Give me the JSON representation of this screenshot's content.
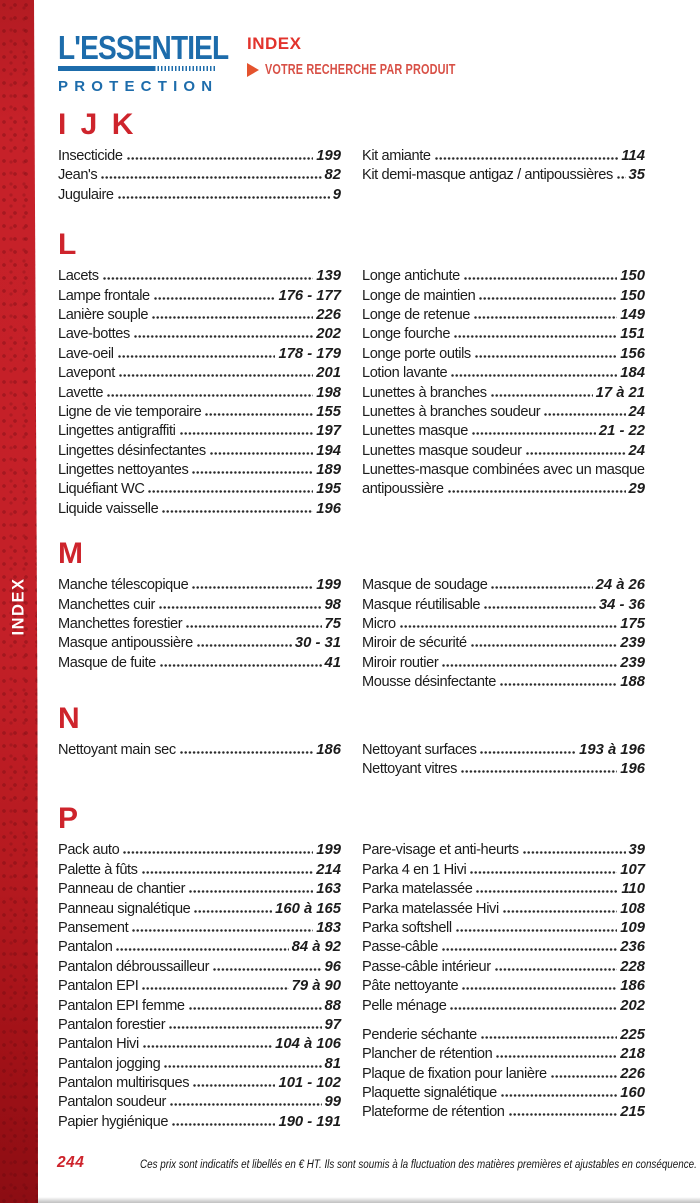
{
  "logo": {
    "line1": "L'ESSENTIEL",
    "line2": "PROTECTION"
  },
  "header": {
    "title": "INDEX",
    "subtitle": "VOTRE RECHERCHE PAR PRODUIT"
  },
  "side_tab": "INDEX",
  "colors": {
    "accent_red": "#ce242c",
    "strip_red": "#c1202a",
    "title_red": "#e2332c",
    "subtitle_red": "#d85046",
    "logo_blue": "#1d6cab",
    "text": "#1c1c1c"
  },
  "footer": {
    "page_number": "244",
    "note": "Ces prix sont indicatifs et libellés en € HT. Ils sont soumis à la fluctuation des matières premières et ajustables en conséquence."
  },
  "sections": [
    {
      "letter": "I J K",
      "left": [
        {
          "label": "Insecticide",
          "page": "199"
        },
        {
          "label": "Jean's",
          "page": "82"
        },
        {
          "label": "Jugulaire",
          "page": "9"
        }
      ],
      "right": [
        {
          "label": "Kit amiante",
          "page": "114"
        },
        {
          "label": "Kit demi-masque antigaz / antipoussières",
          "page": "35"
        }
      ]
    },
    {
      "letter": "L",
      "left": [
        {
          "label": "Lacets",
          "page": "139"
        },
        {
          "label": "Lampe frontale",
          "page": "176 - 177"
        },
        {
          "label": "Lanière souple",
          "page": "226"
        },
        {
          "label": "Lave-bottes",
          "page": "202"
        },
        {
          "label": "Lave-oeil",
          "page": "178 - 179"
        },
        {
          "label": "Lavepont",
          "page": "201"
        },
        {
          "label": "Lavette",
          "page": "198"
        },
        {
          "label": "Ligne de vie temporaire",
          "page": "155"
        },
        {
          "label": "Lingettes antigraffiti",
          "page": "197"
        },
        {
          "label": "Lingettes désinfectantes",
          "page": "194"
        },
        {
          "label": "Lingettes nettoyantes",
          "page": "189"
        },
        {
          "label": "Liquéfiant WC",
          "page": "195"
        },
        {
          "label": "Liquide vaisselle",
          "page": "196"
        }
      ],
      "right": [
        {
          "label": "Longe antichute",
          "page": "150"
        },
        {
          "label": "Longe de maintien",
          "page": "150"
        },
        {
          "label": "Longe de retenue",
          "page": "149"
        },
        {
          "label": "Longe fourche",
          "page": "151"
        },
        {
          "label": "Longe porte outils",
          "page": "156"
        },
        {
          "label": "Lotion lavante",
          "page": "184"
        },
        {
          "label": "Lunettes à branches",
          "page": "17 à 21"
        },
        {
          "label": "Lunettes à branches soudeur",
          "page": "24"
        },
        {
          "label": "Lunettes masque",
          "page": "21 - 22"
        },
        {
          "label": "Lunettes masque soudeur",
          "page": "24"
        },
        {
          "label": "Lunettes-masque combinées avec un masque",
          "label2": "antipoussière",
          "page": "29"
        }
      ]
    },
    {
      "letter": "M",
      "left": [
        {
          "label": "Manche télescopique",
          "page": "199"
        },
        {
          "label": "Manchettes cuir",
          "page": "98"
        },
        {
          "label": "Manchettes forestier",
          "page": "75"
        },
        {
          "label": "Masque antipoussière",
          "page": "30 - 31"
        },
        {
          "label": "Masque de fuite",
          "page": "41"
        }
      ],
      "right": [
        {
          "label": "Masque de soudage",
          "page": "24 à 26"
        },
        {
          "label": "Masque réutilisable",
          "page": "34 - 36"
        },
        {
          "label": "Micro",
          "page": "175"
        },
        {
          "label": "Miroir de sécurité",
          "page": "239"
        },
        {
          "label": "Miroir routier",
          "page": "239"
        },
        {
          "label": "Mousse désinfectante",
          "page": "188"
        }
      ]
    },
    {
      "letter": "N",
      "left": [
        {
          "label": "Nettoyant main sec",
          "page": "186"
        }
      ],
      "right": [
        {
          "label": "Nettoyant surfaces",
          "page": "193 à 196"
        },
        {
          "label": "Nettoyant vitres",
          "page": "196"
        }
      ]
    },
    {
      "letter": "P",
      "left": [
        {
          "label": "Pack auto",
          "page": "199"
        },
        {
          "label": "Palette à fûts",
          "page": "214"
        },
        {
          "label": "Panneau de chantier",
          "page": "163"
        },
        {
          "label": "Panneau signalétique",
          "page": "160 à 165"
        },
        {
          "label": "Pansement",
          "page": "183"
        },
        {
          "label": "Pantalon",
          "page": "84 à 92"
        },
        {
          "label": "Pantalon débroussailleur",
          "page": "96"
        },
        {
          "label": "Pantalon EPI",
          "page": "79 à 90"
        },
        {
          "label": "Pantalon EPI femme",
          "page": "88"
        },
        {
          "label": "Pantalon forestier",
          "page": "97"
        },
        {
          "label": "Pantalon Hivi",
          "page": "104 à 106"
        },
        {
          "label": "Pantalon jogging",
          "page": "81"
        },
        {
          "label": "Pantalon multirisques",
          "page": "101 - 102"
        },
        {
          "label": "Pantalon soudeur",
          "page": "99"
        },
        {
          "label": "Papier hygiénique",
          "page": "190 - 191"
        }
      ],
      "right": [
        {
          "label": "Pare-visage et anti-heurts",
          "page": "39"
        },
        {
          "label": "Parka 4 en 1 Hivi",
          "page": "107"
        },
        {
          "label": "Parka matelassée",
          "page": "110"
        },
        {
          "label": "Parka matelassée Hivi",
          "page": "108"
        },
        {
          "label": "Parka softshell",
          "page": "109"
        },
        {
          "label": "Passe-câble",
          "page": "236"
        },
        {
          "label": "Passe-câble intérieur",
          "page": "228"
        },
        {
          "label": "Pâte nettoyante",
          "page": "186"
        },
        {
          "label": "Pelle ménage",
          "page": "202"
        },
        {
          "spacer": true
        },
        {
          "label": "Penderie séchante",
          "page": "225"
        },
        {
          "label": "Plancher de rétention",
          "page": "218"
        },
        {
          "label": "Plaque de fixation pour lanière",
          "page": "226"
        },
        {
          "label": "Plaquette signalétique",
          "page": "160"
        },
        {
          "label": "Plateforme de rétention",
          "page": "215"
        }
      ]
    }
  ]
}
